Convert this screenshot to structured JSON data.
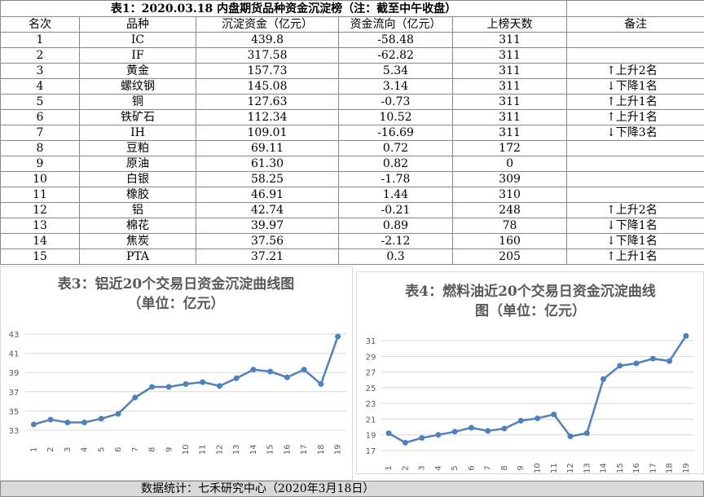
{
  "table": {
    "title": "表1：2020.03.18 内盘期货品种资金沉淀榜（注：截至中午收盘）",
    "header": [
      "名次",
      "品种",
      "沉淀资金（亿元）",
      "资金流向（亿元）",
      "上榜天数",
      "备注"
    ],
    "rows": [
      [
        "1",
        "IC",
        "439.8",
        "-58.48",
        "311"
      ],
      [
        "2",
        "IF",
        "317.58",
        "-62.82",
        "311"
      ],
      [
        "3",
        "黄金",
        "157.73",
        "5.34",
        "311",
        "↑上升2名"
      ],
      [
        "4",
        "螺纹钢",
        "145.08",
        "3.14",
        "311",
        "↓下降1名"
      ],
      [
        "5",
        "铜",
        "127.63",
        "-0.73",
        "311",
        "↑上升1名"
      ],
      [
        "6",
        "铁矿石",
        "112.34",
        "10.52",
        "311",
        "↑上升1名"
      ],
      [
        "7",
        "IH",
        "109.01",
        "-16.69",
        "311",
        "↓下降3名"
      ],
      [
        "8",
        "豆粕",
        "69.11",
        "0.72",
        "172"
      ],
      [
        "9",
        "原油",
        "61.30",
        "0.82",
        "0"
      ],
      [
        "10",
        "白银",
        "58.25",
        "-1.78",
        "309"
      ],
      [
        "11",
        "橡胶",
        "46.91",
        "1.44",
        "310"
      ],
      [
        "12",
        "铝",
        "42.74",
        "-0.21",
        "248",
        "↑上升2名"
      ],
      [
        "13",
        "棉花",
        "39.97",
        "0.89",
        "78",
        "↓下降1名"
      ],
      [
        "14",
        "焦炭",
        "37.56",
        "-2.12",
        "160",
        "↓下降1名"
      ],
      [
        "15",
        "PTA",
        "37.21",
        "0.3",
        "205",
        "↑上升1名"
      ]
    ]
  },
  "chart_data": [
    {
      "type": "line",
      "title": "表3：铝近20个交易日资金沉淀曲线图",
      "subtitle": "（单位：亿元）",
      "categories": [
        "1",
        "2",
        "3",
        "4",
        "5",
        "6",
        "7",
        "8",
        "9",
        "10",
        "11",
        "12",
        "13",
        "14",
        "15",
        "16",
        "17",
        "18",
        "19"
      ],
      "values": [
        33.6,
        34.1,
        33.8,
        33.8,
        34.2,
        34.7,
        36.4,
        37.5,
        37.5,
        37.8,
        38.0,
        37.6,
        38.4,
        39.3,
        39.1,
        38.5,
        39.3,
        37.8,
        42.74
      ],
      "color": "#4f81bd",
      "ylim": [
        32,
        44
      ],
      "yticks": [
        33,
        35,
        37,
        39,
        41,
        43
      ],
      "grid": true
    },
    {
      "type": "line",
      "title": "表4：燃料油近20个交易日资金沉淀曲线图",
      "subtitle": "（单位：亿元）",
      "categories": [
        "1",
        "2",
        "3",
        "4",
        "5",
        "6",
        "7",
        "8",
        "9",
        "10",
        "11",
        "12",
        "13",
        "14",
        "15",
        "16",
        "17",
        "18",
        "19"
      ],
      "values": [
        19.2,
        18.0,
        18.6,
        19.0,
        19.4,
        19.9,
        19.5,
        19.8,
        20.8,
        21.1,
        21.6,
        18.8,
        19.2,
        26.1,
        27.8,
        28.1,
        28.7,
        28.4,
        31.6
      ],
      "color": "#4f81bd",
      "ylim": [
        16,
        32
      ],
      "yticks": [
        17,
        19,
        21,
        23,
        25,
        27,
        29,
        31
      ],
      "grid": true
    }
  ],
  "footer": "数据统计：七禾研究中心（2020年3月18日）"
}
